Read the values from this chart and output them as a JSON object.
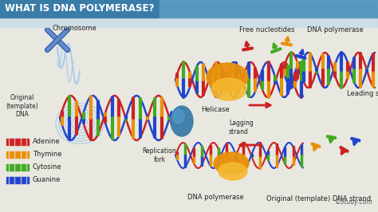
{
  "title": "WHAT IS DNA POLYMERASE?",
  "title_bg": "#3a7ca8",
  "title_color": "#ffffff",
  "bg_color": "#e8e8e0",
  "legend_items": [
    {
      "label": "Adenine",
      "color": "#cc2222"
    },
    {
      "label": "Thymine",
      "color": "#e8900a"
    },
    {
      "label": "Cytosine",
      "color": "#44aa22"
    },
    {
      "label": "Guanine",
      "color": "#2244cc"
    }
  ],
  "strand_colors": [
    "#cc2222",
    "#e8900a",
    "#44aa22",
    "#2244cc"
  ],
  "helicase_color": "#3a7ca8",
  "polymerase_color": "#e8900a",
  "chromosome_color": "#3366aa",
  "coil_color": "#aaccee",
  "watermark": "©Study.com",
  "figsize": [
    4.74,
    2.66
  ],
  "dpi": 100
}
